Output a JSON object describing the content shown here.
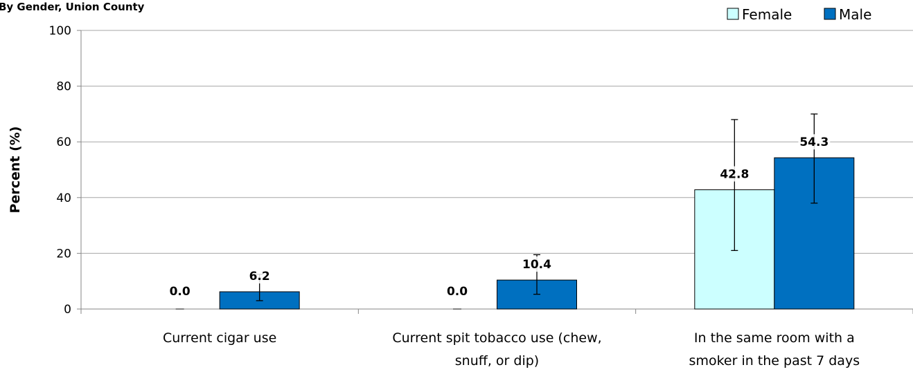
{
  "chart_data": {
    "type": "bar",
    "title": "By Gender, Union County",
    "ylabel": "Percent (%)",
    "xlabel": "",
    "ylim": [
      0,
      100
    ],
    "yticks": [
      0,
      20,
      40,
      60,
      80,
      100
    ],
    "grid": true,
    "legend_position": "top-right",
    "categories": [
      [
        "Current cigar use"
      ],
      [
        "Current spit tobacco use (chew,",
        "snuff, or dip)"
      ],
      [
        "In the same room with a",
        "smoker in the past 7 days"
      ]
    ],
    "series": [
      {
        "name": "Female",
        "color": "#ccffff",
        "values": [
          0.0,
          0.0,
          42.8
        ],
        "labels": [
          "0.0",
          "0.0",
          "42.8"
        ],
        "error_low": [
          0.0,
          0.0,
          21.0
        ],
        "error_high": [
          0.0,
          0.0,
          68.0
        ]
      },
      {
        "name": "Male",
        "color": "#0070c0",
        "values": [
          6.2,
          10.4,
          54.3
        ],
        "labels": [
          "6.2",
          "10.4",
          "54.3"
        ],
        "error_low": [
          3.0,
          5.3,
          38.0
        ],
        "error_high": [
          12.5,
          19.5,
          70.0
        ]
      }
    ]
  }
}
